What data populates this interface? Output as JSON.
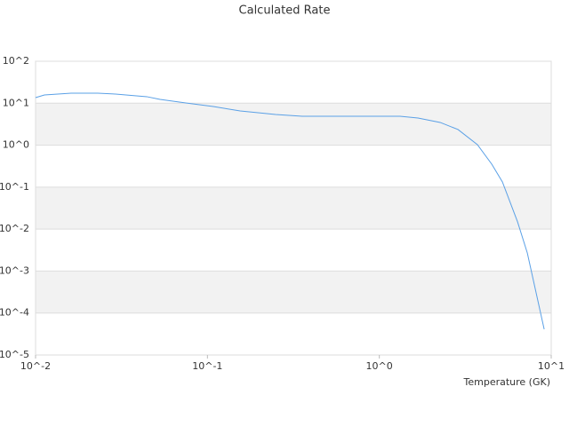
{
  "chart_data": {
    "type": "line",
    "title": "Calculated Rate",
    "x_label": "Temperature (GK)",
    "x": [
      0.01,
      0.01126,
      0.01346,
      0.0161,
      0.023,
      0.0292,
      0.0444,
      0.053,
      0.0757,
      0.108,
      0.155,
      0.249,
      0.356,
      1.32,
      1.68,
      2.26,
      2.87,
      3.72,
      4.51,
      5.2,
      6.37,
      7.26,
      9.1
    ],
    "values": [
      13.6,
      15.7,
      16.5,
      17.3,
      17.3,
      16.5,
      14.3,
      12.3,
      10.1,
      8.35,
      6.55,
      5.39,
      4.89,
      4.89,
      4.43,
      3.48,
      2.36,
      1.03,
      0.352,
      0.133,
      0.0149,
      0.00271,
      4.1e-05
    ],
    "color": "#5aa0e6",
    "xscale": "log",
    "yscale": "log",
    "xlim": [
      0.01,
      10
    ],
    "ylim": [
      1e-05,
      100
    ],
    "xticks": [
      {
        "value": 0.01,
        "label": "10^-2"
      },
      {
        "value": 0.1,
        "label": "10^-1"
      },
      {
        "value": 1,
        "label": "10^0"
      },
      {
        "value": 10,
        "label": "10^1"
      }
    ],
    "yticks": [
      {
        "value": 100,
        "label": "10^2"
      },
      {
        "value": 10,
        "label": "10^1"
      },
      {
        "value": 1,
        "label": "10^0"
      },
      {
        "value": 0.1,
        "label": "10^-1"
      },
      {
        "value": 0.01,
        "label": "10^-2"
      },
      {
        "value": 0.001,
        "label": "10^-3"
      },
      {
        "value": 0.0001,
        "label": "10^-4"
      },
      {
        "value": 1e-05,
        "label": "10^-5"
      }
    ],
    "grid": true
  }
}
